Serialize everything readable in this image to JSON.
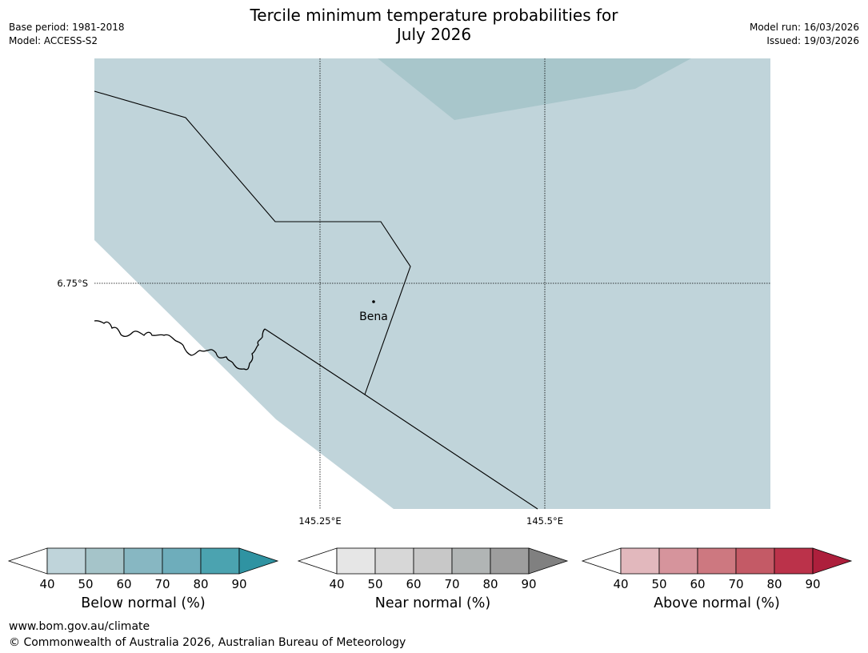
{
  "header": {
    "title_line1": "Tercile minimum temperature probabilities for",
    "title_line2": "July 2026",
    "base_period": "Base period: 1981-2018",
    "model": "Model: ACCESS-S2",
    "model_run": "Model run: 16/03/2026",
    "issued": "Issued: 19/03/2026"
  },
  "map": {
    "lat_label": "6.75°S",
    "lon_labels": [
      "145.25°E",
      "145.5°E"
    ],
    "place": "Bena",
    "colors": {
      "land": "#c0d4da",
      "darker_region": "#a8c6cb",
      "ocean": "#ffffff"
    }
  },
  "colorbars": {
    "ticks": [
      "40",
      "50",
      "60",
      "70",
      "80",
      "90"
    ],
    "below": {
      "label": "Below normal (%)",
      "colors": [
        "#ffffff",
        "#bfd4da",
        "#a5c4c9",
        "#87b7c2",
        "#6eadbb",
        "#4ba3b0",
        "#2f93a2"
      ]
    },
    "near": {
      "label": "Near normal (%)",
      "colors": [
        "#ffffff",
        "#e6e6e6",
        "#d7d7d7",
        "#c8c8c8",
        "#b1b5b5",
        "#9e9e9e",
        "#808080"
      ]
    },
    "above": {
      "label": "Above normal (%)",
      "colors": [
        "#ffffff",
        "#e2b8bd",
        "#d6949c",
        "#cd7880",
        "#c45a66",
        "#bb324a",
        "#ad1f3c"
      ]
    }
  },
  "footer": {
    "url": "www.bom.gov.au/climate",
    "copyright": "© Commonwealth of Australia 2026, Australian Bureau of Meteorology"
  }
}
